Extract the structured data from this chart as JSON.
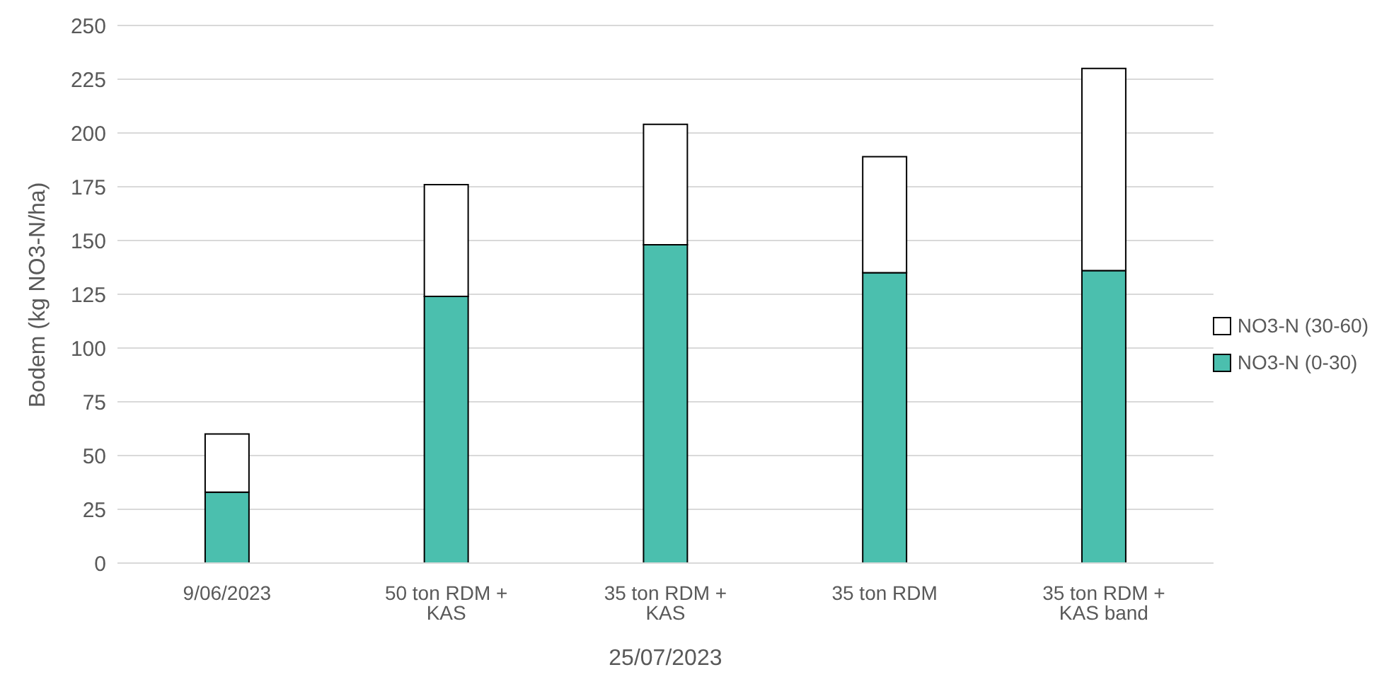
{
  "chart_data": {
    "type": "bar",
    "stacked": true,
    "categories": [
      "9/06/2023",
      "50 ton RDM + KAS",
      "35 ton RDM + KAS",
      "35 ton RDM",
      "35 ton RDM + KAS band"
    ],
    "series": [
      {
        "name": "NO3-N (0-30)",
        "color": "#4bbfae",
        "values": [
          33,
          124,
          148,
          135,
          136
        ]
      },
      {
        "name": "NO3-N (30-60)",
        "color": "#ffffff",
        "values": [
          27,
          52,
          56,
          54,
          94
        ]
      }
    ],
    "xlabel": "25/07/2023",
    "ylabel": "Bodem (kg NO3-N/ha)",
    "ylim": [
      0,
      250
    ],
    "yticks": [
      0,
      25,
      50,
      75,
      100,
      125,
      150,
      175,
      200,
      225,
      250
    ],
    "grid": "y",
    "legend": "right"
  }
}
